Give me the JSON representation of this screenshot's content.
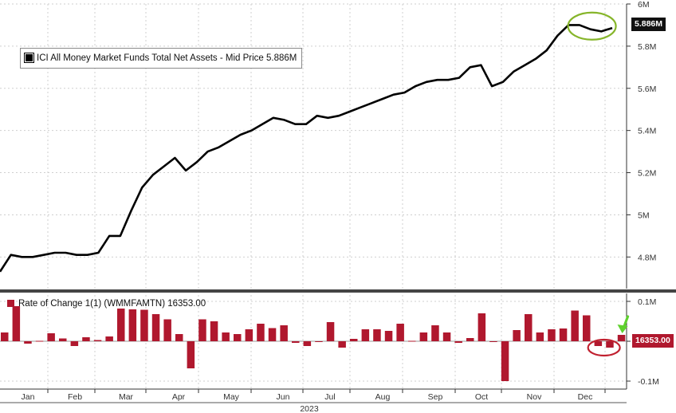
{
  "chart_data": [
    {
      "type": "line",
      "legend": "ICI All Money Market Funds Total Net Assets - Mid Price 5.886M",
      "last_value_label": "5.886M",
      "y_ticks": [
        "6M",
        "5.8M",
        "5.6M",
        "5.4M",
        "5.2M",
        "5M",
        "4.8M"
      ],
      "ylim": [
        4.65,
        6.0
      ],
      "line_color": "#000000",
      "annotation": "green circle around latest peak",
      "series": [
        {
          "name": "ICI All Money Market Funds Total Net Assets",
          "values": [
            4.73,
            4.81,
            4.8,
            4.8,
            4.81,
            4.82,
            4.82,
            4.81,
            4.81,
            4.82,
            4.9,
            4.9,
            5.02,
            5.13,
            5.19,
            5.23,
            5.27,
            5.21,
            5.25,
            5.3,
            5.32,
            5.35,
            5.38,
            5.4,
            5.43,
            5.46,
            5.45,
            5.43,
            5.43,
            5.47,
            5.46,
            5.47,
            5.49,
            5.51,
            5.53,
            5.55,
            5.57,
            5.58,
            5.61,
            5.63,
            5.64,
            5.64,
            5.65,
            5.7,
            5.71,
            5.61,
            5.63,
            5.68,
            5.71,
            5.74,
            5.78,
            5.85,
            5.9,
            5.9,
            5.88,
            5.87,
            5.886
          ]
        }
      ]
    },
    {
      "type": "bar",
      "legend": "Rate of Change 1(1) (WMMFAMTN) 16353.00",
      "last_value_label": "16353.00",
      "y_ticks": [
        "0.1M",
        "0",
        "-0.1M"
      ],
      "ylim": [
        -0.12,
        0.12
      ],
      "bar_color": "#b0182e",
      "annotation": "red circle around negative bars, green arrow pointing to last bar",
      "values": [
        0.022,
        0.088,
        -0.006,
        0.001,
        0.02,
        0.007,
        -0.012,
        0.01,
        0.003,
        0.012,
        0.082,
        0.08,
        0.079,
        0.068,
        0.055,
        0.018,
        -0.068,
        0.055,
        0.05,
        0.022,
        0.018,
        0.03,
        0.044,
        0.033,
        0.04,
        -0.004,
        -0.012,
        0.0,
        0.048,
        -0.016,
        0.006,
        0.03,
        0.03,
        0.026,
        0.044,
        0.001,
        0.022,
        0.04,
        0.022,
        -0.004,
        0.008,
        0.07,
        0.0,
        -0.1,
        0.028,
        0.068,
        0.022,
        0.03,
        0.032,
        0.077,
        0.065,
        -0.012,
        -0.016,
        0.016
      ]
    }
  ],
  "x_axis": {
    "months": [
      "Jan",
      "Feb",
      "Mar",
      "Apr",
      "May",
      "Jun",
      "Jul",
      "Aug",
      "Sep",
      "Oct",
      "Nov",
      "Dec"
    ],
    "year": "2023"
  }
}
